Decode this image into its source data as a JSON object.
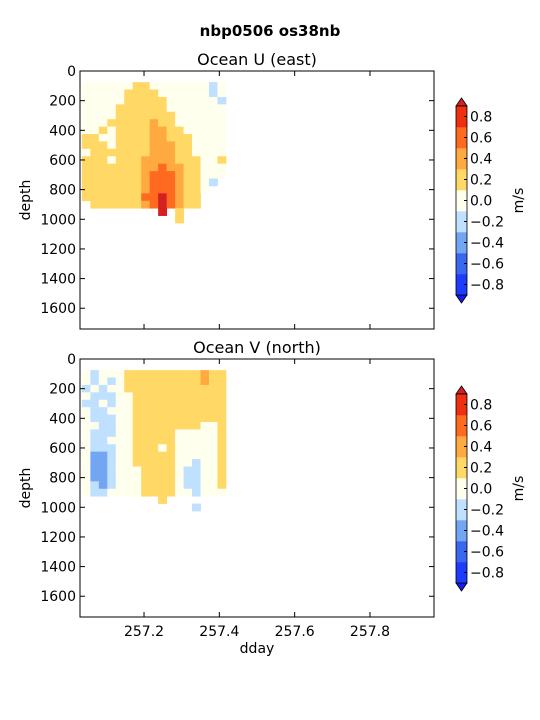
{
  "figure": {
    "title": "nbp0506 os38nb"
  },
  "colorbar": {
    "label": "m/s",
    "levels": [
      -0.8,
      -0.6,
      -0.4,
      -0.2,
      0.0,
      0.2,
      0.4,
      0.6,
      0.8
    ],
    "tick_labels": [
      "−0.8",
      "−0.6",
      "−0.4",
      "−0.2",
      "0.0",
      "0.2",
      "0.4",
      "0.6",
      "0.8"
    ],
    "colors": [
      "#1f3bff",
      "#3a67f0",
      "#72a6f3",
      "#bfe0ff",
      "#ffffee",
      "#ffd866",
      "#ffaa40",
      "#ff6a20",
      "#ee3010"
    ],
    "under_color": "#1a1aee",
    "over_color": "#d42020"
  },
  "chart_data": [
    {
      "type": "heatmap",
      "title": "Ocean U (east)",
      "xlabel": "",
      "ylabel": "depth",
      "xlim": [
        257.03,
        257.97
      ],
      "ylim": [
        1740,
        0
      ],
      "xticks": [
        257.2,
        257.4,
        257.6,
        257.8
      ],
      "xtick_labels": [
        "257.2",
        "257.4",
        "257.6",
        "257.8"
      ],
      "xtick_labels_shown": false,
      "yticks": [
        0,
        200,
        400,
        600,
        800,
        1000,
        1200,
        1400,
        1600
      ],
      "ytick_labels": [
        "0",
        "200",
        "400",
        "600",
        "800",
        "1000",
        "1200",
        "1400",
        "1600"
      ],
      "x_start": 257.035,
      "dx": 0.0225,
      "y_start": 75,
      "dy": 50,
      "units": "m/s",
      "grid": false,
      "values": [
        [
          0.1,
          0.1,
          0.1,
          0.1,
          0.1,
          0.1,
          0.3,
          0.3,
          0.1,
          0.1,
          0.1,
          0.1,
          0.1,
          0.1,
          0.1,
          -0.1,
          0.1
        ],
        [
          0.1,
          0.1,
          0.1,
          0.1,
          0.1,
          0.3,
          0.3,
          0.3,
          0.3,
          0.1,
          0.1,
          0.1,
          0.1,
          0.1,
          0.1,
          -0.1,
          0.1
        ],
        [
          0.1,
          0.1,
          0.1,
          0.1,
          0.1,
          0.3,
          0.3,
          0.3,
          0.3,
          0.3,
          0.1,
          0.1,
          0.1,
          0.1,
          0.1,
          0.1,
          -0.1
        ],
        [
          0.1,
          0.1,
          0.1,
          0.1,
          0.3,
          0.3,
          0.3,
          0.3,
          0.3,
          0.3,
          0.1,
          0.1,
          0.1,
          0.1,
          0.1,
          0.1,
          0.1
        ],
        [
          0.1,
          0.1,
          0.1,
          0.1,
          0.3,
          0.3,
          0.3,
          0.3,
          0.3,
          0.3,
          0.3,
          0.1,
          0.1,
          0.1,
          0.1,
          0.1,
          0.1
        ],
        [
          0.1,
          0.1,
          0.1,
          0.3,
          0.3,
          0.3,
          0.3,
          0.3,
          0.5,
          0.3,
          0.3,
          0.1,
          0.1,
          0.1,
          0.1,
          0.1,
          0.1
        ],
        [
          0.1,
          0.1,
          0.3,
          0.1,
          0.3,
          0.3,
          0.3,
          0.3,
          0.5,
          0.5,
          0.3,
          0.3,
          0.1,
          0.1,
          0.1,
          0.1,
          0.1
        ],
        [
          0.3,
          0.3,
          0.1,
          0.1,
          0.3,
          0.3,
          0.3,
          0.3,
          0.5,
          0.5,
          0.3,
          0.3,
          0.3,
          0.1,
          0.1,
          0.1,
          0.1
        ],
        [
          0.3,
          0.3,
          0.3,
          0.1,
          0.3,
          0.3,
          0.3,
          0.3,
          0.5,
          0.5,
          0.5,
          0.3,
          0.3,
          0.1,
          0.1,
          0.1,
          0.1
        ],
        [
          0.1,
          0.3,
          0.3,
          0.3,
          0.3,
          0.3,
          0.3,
          0.3,
          0.5,
          0.5,
          0.5,
          0.3,
          0.3,
          0.1,
          0.1,
          0.1,
          0.1
        ],
        [
          0.3,
          0.3,
          0.3,
          0.1,
          0.3,
          0.3,
          0.3,
          0.5,
          0.5,
          0.5,
          0.5,
          0.3,
          0.3,
          0.3,
          0.1,
          0.1,
          0.3
        ],
        [
          0.3,
          0.3,
          0.3,
          0.3,
          0.3,
          0.3,
          0.3,
          0.5,
          0.5,
          0.7,
          0.5,
          0.5,
          0.3,
          0.3,
          0.1,
          0.1,
          0.1
        ],
        [
          0.3,
          0.3,
          0.3,
          0.3,
          0.3,
          0.3,
          0.3,
          0.5,
          0.7,
          0.7,
          0.7,
          0.5,
          0.3,
          0.3,
          0.1,
          0.1,
          0.1
        ],
        [
          0.3,
          0.3,
          0.3,
          0.3,
          0.3,
          0.3,
          0.3,
          0.5,
          0.7,
          0.7,
          0.7,
          0.5,
          0.3,
          0.3,
          0.1,
          -0.1,
          null
        ],
        [
          0.3,
          0.3,
          0.3,
          0.3,
          0.3,
          0.3,
          0.3,
          0.5,
          0.7,
          0.7,
          0.7,
          0.5,
          0.3,
          0.3,
          0.1,
          null,
          null
        ],
        [
          0.3,
          0.3,
          0.3,
          0.3,
          0.3,
          0.3,
          0.3,
          0.7,
          0.7,
          0.9,
          0.7,
          0.5,
          0.3,
          0.3,
          null,
          null,
          null
        ],
        [
          null,
          0.3,
          0.3,
          0.3,
          0.3,
          0.3,
          0.3,
          0.5,
          0.7,
          0.9,
          0.7,
          0.5,
          0.3,
          0.3,
          null,
          null,
          null
        ],
        [
          null,
          null,
          null,
          null,
          null,
          null,
          null,
          null,
          null,
          0.9,
          null,
          0.3,
          null,
          null,
          null,
          null,
          null
        ],
        [
          null,
          null,
          null,
          null,
          null,
          null,
          null,
          null,
          null,
          null,
          null,
          0.3,
          null,
          null,
          null,
          null,
          null
        ]
      ]
    },
    {
      "type": "heatmap",
      "title": "Ocean V (north)",
      "xlabel": "dday",
      "ylabel": "depth",
      "xlim": [
        257.03,
        257.97
      ],
      "ylim": [
        1740,
        0
      ],
      "xticks": [
        257.2,
        257.4,
        257.6,
        257.8
      ],
      "xtick_labels": [
        "257.2",
        "257.4",
        "257.6",
        "257.8"
      ],
      "xtick_labels_shown": true,
      "yticks": [
        0,
        200,
        400,
        600,
        800,
        1000,
        1200,
        1400,
        1600
      ],
      "ytick_labels": [
        "0",
        "200",
        "400",
        "600",
        "800",
        "1000",
        "1200",
        "1400",
        "1600"
      ],
      "x_start": 257.035,
      "dx": 0.0225,
      "y_start": 75,
      "dy": 50,
      "units": "m/s",
      "grid": false,
      "values": [
        [
          0.1,
          -0.1,
          0.1,
          0.1,
          0.1,
          0.3,
          0.3,
          0.3,
          0.3,
          0.3,
          0.3,
          0.3,
          0.3,
          0.3,
          0.5,
          0.3,
          0.3
        ],
        [
          0.1,
          -0.1,
          0.1,
          -0.1,
          0.1,
          0.3,
          0.3,
          0.3,
          0.3,
          0.3,
          0.3,
          0.3,
          0.3,
          0.3,
          0.5,
          0.3,
          0.3
        ],
        [
          -0.1,
          0.1,
          -0.1,
          0.1,
          0.1,
          0.3,
          0.3,
          0.3,
          0.3,
          0.3,
          0.3,
          0.3,
          0.3,
          0.3,
          0.3,
          0.3,
          0.3
        ],
        [
          0.1,
          -0.1,
          -0.1,
          -0.1,
          0.1,
          0.1,
          0.3,
          0.3,
          0.3,
          0.3,
          0.3,
          0.3,
          0.3,
          0.3,
          0.3,
          0.3,
          0.3
        ],
        [
          -0.1,
          -0.1,
          0.1,
          -0.1,
          0.1,
          0.1,
          0.3,
          0.3,
          0.3,
          0.3,
          0.3,
          0.3,
          0.3,
          0.3,
          0.3,
          0.3,
          0.3
        ],
        [
          0.1,
          -0.1,
          -0.1,
          0.1,
          0.1,
          0.1,
          0.3,
          0.3,
          0.3,
          0.3,
          0.3,
          0.3,
          0.3,
          0.3,
          0.3,
          0.3,
          0.3
        ],
        [
          0.1,
          -0.1,
          -0.1,
          -0.1,
          0.1,
          0.1,
          0.3,
          0.3,
          0.3,
          0.3,
          0.3,
          0.3,
          0.3,
          0.3,
          0.3,
          0.3,
          0.3
        ],
        [
          0.1,
          0.1,
          -0.1,
          -0.1,
          0.1,
          0.1,
          0.3,
          0.3,
          0.3,
          0.3,
          0.3,
          0.3,
          0.3,
          0.3,
          0.1,
          0.1,
          0.3
        ],
        [
          0.1,
          -0.1,
          -0.1,
          -0.1,
          0.1,
          0.1,
          0.3,
          0.3,
          0.3,
          0.3,
          0.3,
          0.1,
          0.1,
          0.1,
          0.1,
          0.1,
          0.3
        ],
        [
          0.1,
          -0.1,
          -0.1,
          0.1,
          0.1,
          0.1,
          0.3,
          0.3,
          0.3,
          0.3,
          0.3,
          0.1,
          0.1,
          0.1,
          0.1,
          0.1,
          0.3
        ],
        [
          0.1,
          -0.1,
          -0.1,
          -0.1,
          0.1,
          0.1,
          0.3,
          0.3,
          0.3,
          0.1,
          0.3,
          0.1,
          0.1,
          0.1,
          0.1,
          0.1,
          0.3
        ],
        [
          0.1,
          -0.3,
          -0.3,
          -0.1,
          0.1,
          0.1,
          0.3,
          0.3,
          0.3,
          0.3,
          0.3,
          0.1,
          0.1,
          0.1,
          0.1,
          0.1,
          0.3
        ],
        [
          0.1,
          -0.3,
          -0.3,
          -0.1,
          0.1,
          0.1,
          0.3,
          0.3,
          0.3,
          0.3,
          0.3,
          0.1,
          0.1,
          -0.1,
          0.1,
          0.1,
          0.3
        ],
        [
          0.1,
          -0.3,
          -0.3,
          -0.1,
          0.1,
          0.1,
          0.1,
          0.3,
          0.3,
          0.3,
          0.3,
          0.1,
          -0.1,
          -0.1,
          0.1,
          0.1,
          0.3
        ],
        [
          0.1,
          -0.3,
          -0.3,
          -0.1,
          0.1,
          0.1,
          0.1,
          0.3,
          0.3,
          0.3,
          0.3,
          0.1,
          -0.1,
          -0.1,
          0.1,
          0.1,
          0.3
        ],
        [
          0.1,
          -0.1,
          -0.3,
          -0.1,
          0.1,
          0.1,
          0.1,
          0.3,
          0.3,
          0.3,
          0.3,
          0.1,
          -0.1,
          -0.1,
          0.1,
          0.1,
          0.3
        ],
        [
          0.1,
          -0.1,
          -0.1,
          0.1,
          0.1,
          0.1,
          0.1,
          0.3,
          0.3,
          0.3,
          0.3,
          0.1,
          0.1,
          -0.1,
          0.1,
          0.1,
          0.1
        ],
        [
          null,
          null,
          null,
          null,
          null,
          null,
          null,
          null,
          null,
          0.3,
          null,
          null,
          null,
          null,
          null,
          null,
          null
        ],
        [
          null,
          null,
          null,
          null,
          null,
          null,
          null,
          null,
          null,
          null,
          null,
          null,
          null,
          -0.1,
          null,
          null,
          null
        ]
      ]
    }
  ]
}
